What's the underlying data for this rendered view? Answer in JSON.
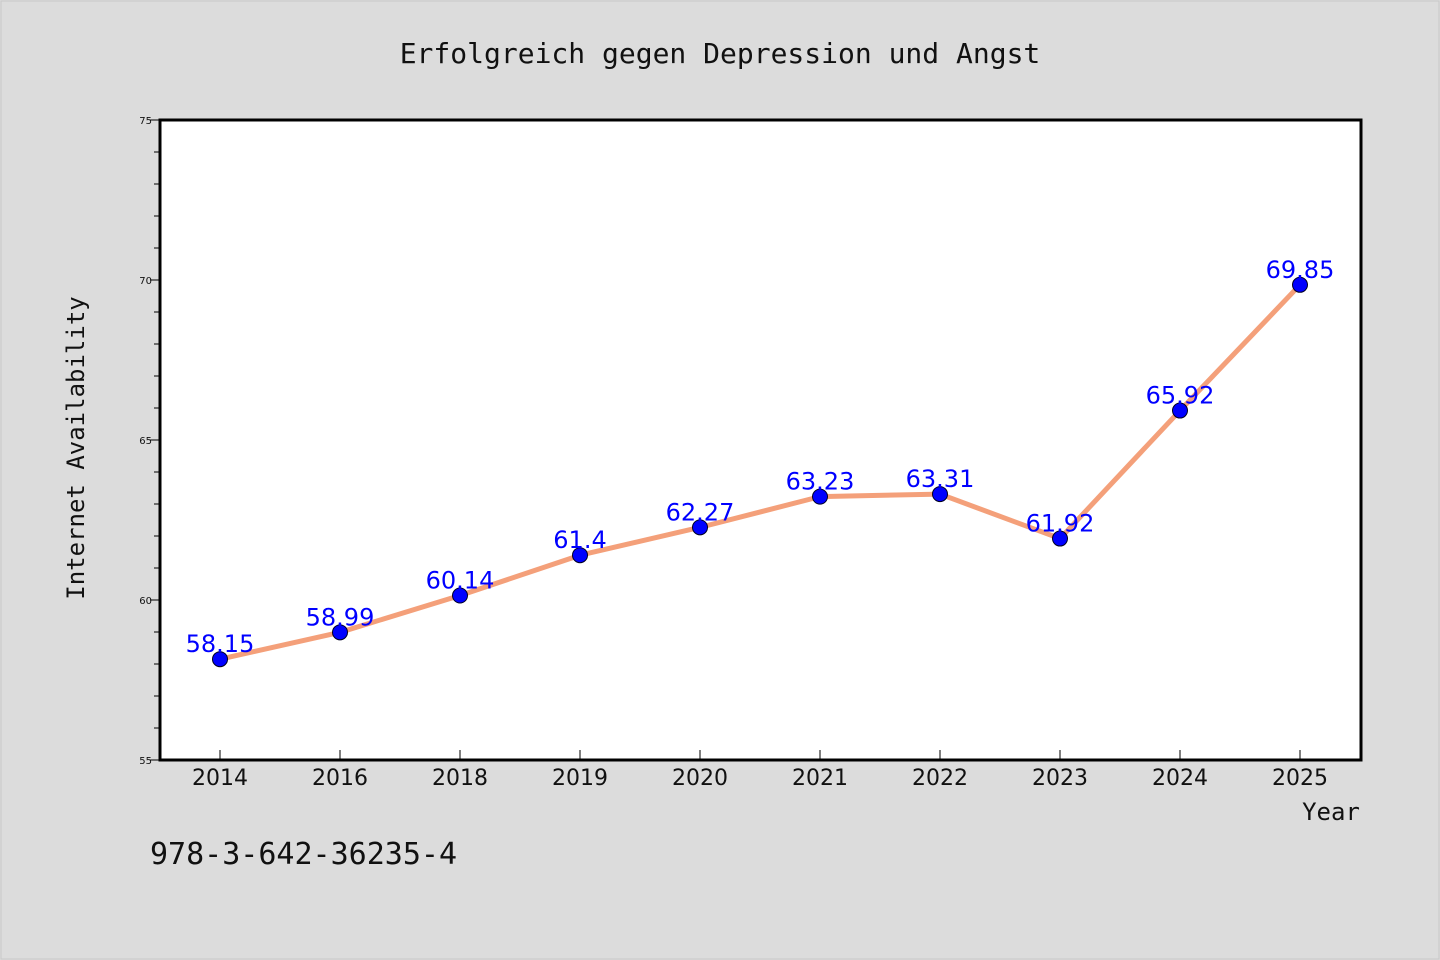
{
  "chart_data": {
    "type": "line",
    "title": "Erfolgreich gegen Depression und Angst",
    "xlabel": "Year",
    "ylabel": "Internet Availability",
    "categories": [
      "2014",
      "2016",
      "2018",
      "2019",
      "2020",
      "2021",
      "2022",
      "2023",
      "2024",
      "2025"
    ],
    "series": [
      {
        "values": [
          58.15,
          58.99,
          60.14,
          61.4,
          62.27,
          63.23,
          63.31,
          61.92,
          65.92,
          69.85
        ],
        "data_labels": [
          "58.15",
          "58.99",
          "60.14",
          "61.4",
          "62.27",
          "63.23",
          "63.31",
          "61.92",
          "65.92",
          "69.85"
        ],
        "line_color": "#f4a07a",
        "marker_color": "#0000ff",
        "label_color": "#0000ff"
      }
    ],
    "ylim": [
      55,
      75
    ],
    "yticks": [
      "55",
      "60",
      "65",
      "70",
      "75"
    ],
    "grid": false,
    "legend": "none"
  },
  "footer": {
    "isbn": "978-3-642-36235-4"
  },
  "colors": {
    "background": "#dcdcdc",
    "plot_background": "#ffffff",
    "axis": "#000000"
  }
}
